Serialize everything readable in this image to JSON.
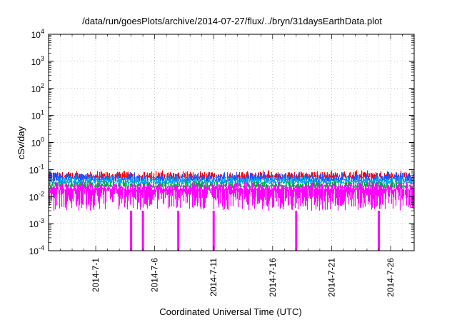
{
  "chart_data": {
    "type": "line",
    "title": "/data/run/goesPlots/archive/2014-07-27/flux/../bryn/31daysEarthData.plot",
    "xlabel": "Coordinated Universal Time (UTC)",
    "ylabel": "cSv/day",
    "yscale": "log",
    "ylim": [
      0.0001,
      10000
    ],
    "xlim": [
      "2014-06-27",
      "2014-07-28"
    ],
    "x_ticks": [
      "2014-7-1",
      "2014-7-6",
      "2014-7-11",
      "2014-7-16",
      "2014-7-21",
      "2014-7-26"
    ],
    "y_ticks": [
      {
        "value": 0.0001,
        "base": "10",
        "exp": "-4"
      },
      {
        "value": 0.001,
        "base": "10",
        "exp": "-3"
      },
      {
        "value": 0.01,
        "base": "10",
        "exp": "-2"
      },
      {
        "value": 0.1,
        "base": "10",
        "exp": "-1"
      },
      {
        "value": 1,
        "base": "10",
        "exp": "0"
      },
      {
        "value": 10,
        "base": "10",
        "exp": "1"
      },
      {
        "value": 100,
        "base": "10",
        "exp": "2"
      },
      {
        "value": 1000,
        "base": "10",
        "exp": "3"
      },
      {
        "value": 10000,
        "base": "10",
        "exp": "4"
      }
    ],
    "grid": true,
    "series": [
      {
        "color": "#ff0000",
        "typical": 0.055,
        "min": 0.04,
        "max": 0.095
      },
      {
        "color": "#2255ff",
        "typical": 0.045,
        "min": 0.03,
        "max": 0.08
      },
      {
        "color": "#00aaee",
        "typical": 0.035,
        "min": 0.025,
        "max": 0.06
      },
      {
        "color": "#00aa44",
        "typical": 0.025,
        "min": 0.018,
        "max": 0.04
      },
      {
        "color": "#ff00ff",
        "typical": 0.02,
        "min": 0.003,
        "max": 0.035
      }
    ],
    "dropouts": [
      "2014-07-04",
      "2014-07-05",
      "2014-07-08",
      "2014-07-11",
      "2014-07-18",
      "2014-07-25"
    ]
  }
}
